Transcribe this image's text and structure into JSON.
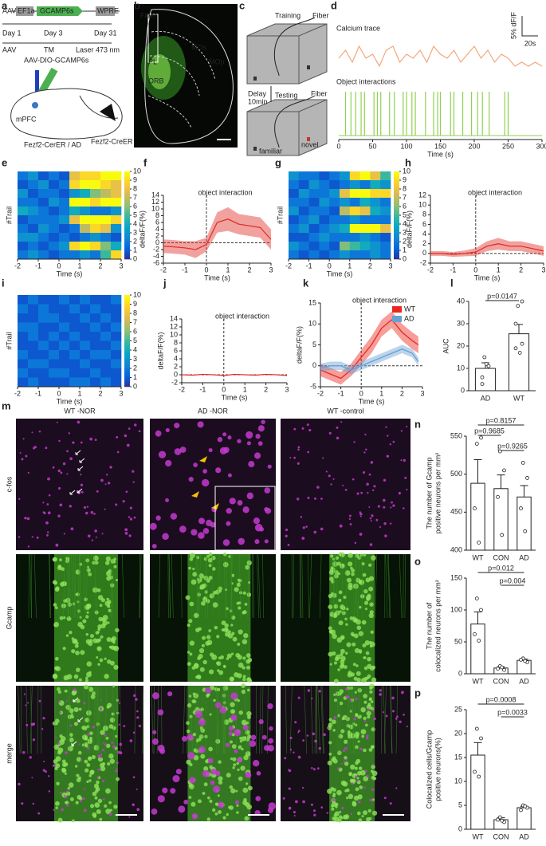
{
  "panels": {
    "a": {
      "label": "a",
      "construct": [
        "AAV",
        "EF1a",
        "GCAMP6s",
        "WPRE"
      ],
      "timeline": [
        "Day 1",
        "Day 3",
        "Day 31"
      ],
      "events": [
        "AAV",
        "TM",
        "Laser 473 nm"
      ],
      "virus": "AAV-DIO-GCAMP6s",
      "region": "mPFC",
      "mouse": "Fezf2-CerER / AD",
      "mouse_sup": "Fezf2-CreER"
    },
    "b": {
      "label": "b",
      "regions": [
        "Fiber",
        "MOs",
        "PL",
        "MOp",
        "ORB"
      ]
    },
    "c": {
      "label": "c",
      "texts": [
        "Training",
        "Fiber",
        "Delay",
        "10min",
        "Testing",
        "Fiber",
        "novel",
        "familiar"
      ]
    },
    "m": {
      "label": "m",
      "columns": [
        "WT -NOR",
        "AD -NOR",
        "WT -control"
      ],
      "rows": [
        "c-fos",
        "Gcamp",
        "merge"
      ]
    }
  },
  "chart_data": [
    {
      "label": "d",
      "type": "events",
      "trace_title": "Calcium trace",
      "events_title": "Object interactions",
      "scale_y": "5% dF/F",
      "scale_x": "20s",
      "trace_color": "#f4a77a",
      "events_color": "#8fd14f",
      "trace_x": [
        0,
        10,
        20,
        30,
        40,
        50,
        60,
        70,
        80,
        90,
        100,
        110,
        120,
        130,
        140,
        150,
        160,
        170,
        180,
        190,
        200,
        210,
        220,
        230,
        240,
        250,
        260,
        270,
        280,
        290,
        300
      ],
      "trace": [
        3,
        5,
        2,
        6,
        3,
        4,
        1,
        5,
        6,
        2,
        4,
        3,
        5,
        2,
        6,
        4,
        3,
        5,
        2,
        4,
        6,
        3,
        5,
        2,
        4,
        3,
        1,
        2,
        1,
        2,
        1
      ],
      "events": [
        10,
        18,
        25,
        33,
        38,
        52,
        57,
        62,
        75,
        82,
        95,
        100,
        108,
        113,
        128,
        140,
        146,
        150,
        165,
        170,
        183,
        196,
        205,
        212,
        222,
        245,
        250
      ],
      "xlim": [
        0,
        300
      ],
      "xticks": [
        0,
        50,
        100,
        150,
        200,
        250,
        300
      ],
      "xlabel": "Time (s)"
    },
    {
      "label": "e",
      "type": "heatmap",
      "ylabel": "#Trail",
      "xlabel": "Time (s)",
      "xlim": [
        -2,
        3
      ],
      "xticks": [
        -2,
        -1,
        0,
        1,
        2,
        3
      ],
      "clim": [
        0,
        10
      ],
      "cticks": [
        0,
        1,
        2,
        3,
        4,
        5,
        6,
        7,
        8,
        9,
        10
      ],
      "matrix": [
        [
          2,
          3,
          1,
          2,
          1,
          8,
          9,
          9,
          10,
          10
        ],
        [
          1,
          2,
          3,
          1,
          2,
          9,
          10,
          10,
          9,
          8
        ],
        [
          3,
          1,
          2,
          2,
          1,
          3,
          4,
          6,
          7,
          8
        ],
        [
          2,
          2,
          1,
          3,
          2,
          10,
          10,
          9,
          10,
          10
        ],
        [
          4,
          3,
          2,
          1,
          2,
          4,
          3,
          2,
          2,
          3
        ],
        [
          1,
          2,
          2,
          2,
          3,
          8,
          10,
          10,
          10,
          9
        ],
        [
          2,
          1,
          3,
          2,
          1,
          2,
          7,
          9,
          8,
          3
        ],
        [
          3,
          3,
          2,
          1,
          2,
          1,
          2,
          3,
          2,
          1
        ],
        [
          1,
          2,
          1,
          2,
          3,
          9,
          10,
          9,
          6,
          4
        ],
        [
          2,
          3,
          2,
          1,
          2,
          2,
          3,
          2,
          5,
          9
        ]
      ]
    },
    {
      "label": "f",
      "type": "band",
      "title": "object interaction",
      "ylabel": "deltaF/F(%)",
      "xlabel": "Time (s)",
      "xlim": [
        -2,
        3
      ],
      "xticks": [
        -2,
        -1,
        0,
        1,
        2,
        3
      ],
      "ylim": [
        -6,
        14
      ],
      "yticks": [
        -6,
        -4,
        -2,
        0,
        2,
        4,
        6,
        8,
        10,
        12,
        14
      ],
      "x": [
        -2,
        -1.5,
        -1,
        -0.5,
        0,
        0.5,
        1,
        1.5,
        2,
        2.5,
        3
      ],
      "series": [
        {
          "color": "#e0312b",
          "values": [
            -1,
            -1.2,
            -1.5,
            -2,
            -0.5,
            6,
            7,
            5.5,
            5,
            4.5,
            1
          ],
          "sem": [
            2,
            2,
            2,
            2.5,
            2,
            3,
            3.5,
            3,
            3,
            3,
            3
          ]
        }
      ]
    },
    {
      "label": "g",
      "type": "heatmap",
      "ylabel": "#Trail",
      "xlabel": "Time (s)",
      "xlim": [
        -2,
        3
      ],
      "xticks": [
        -2,
        -1,
        0,
        1,
        2,
        3
      ],
      "clim": [
        0,
        10
      ],
      "cticks": [
        0,
        1,
        2,
        3,
        4,
        5,
        6,
        7,
        8,
        9,
        10
      ],
      "matrix": [
        [
          3,
          2,
          2,
          1,
          2,
          3,
          9,
          10,
          8,
          5
        ],
        [
          2,
          1,
          3,
          2,
          1,
          2,
          3,
          2,
          4,
          3
        ],
        [
          1,
          3,
          2,
          2,
          3,
          8,
          10,
          10,
          9,
          9
        ],
        [
          2,
          2,
          1,
          3,
          2,
          3,
          2,
          4,
          3,
          2
        ],
        [
          3,
          1,
          2,
          2,
          1,
          7,
          9,
          8,
          4,
          3
        ],
        [
          1,
          2,
          3,
          1,
          2,
          2,
          3,
          2,
          2,
          2
        ],
        [
          2,
          3,
          1,
          2,
          3,
          4,
          10,
          10,
          10,
          8
        ],
        [
          1,
          1,
          2,
          3,
          2,
          2,
          2,
          3,
          2,
          1
        ],
        [
          3,
          2,
          1,
          2,
          1,
          6,
          5,
          4,
          3,
          2
        ],
        [
          2,
          1,
          2,
          1,
          2,
          3,
          2,
          2,
          3,
          2
        ]
      ]
    },
    {
      "label": "h",
      "type": "band",
      "title": "object interaction",
      "ylabel": "deltaF/F(%)",
      "xlabel": "Time (s)",
      "xlim": [
        -2,
        3
      ],
      "xticks": [
        -2,
        -1,
        0,
        1,
        2,
        3
      ],
      "ylim": [
        -2,
        12
      ],
      "yticks": [
        -2,
        0,
        2,
        4,
        6,
        8,
        10,
        12
      ],
      "x": [
        -2,
        -1.5,
        -1,
        -0.5,
        0,
        0.5,
        1,
        1.5,
        2,
        2.5,
        3
      ],
      "series": [
        {
          "color": "#e0312b",
          "values": [
            0,
            0,
            -0.2,
            0,
            0.3,
            1.5,
            2,
            1.5,
            1.5,
            1,
            0.5
          ],
          "sem": [
            0.5,
            0.5,
            0.5,
            0.6,
            0.8,
            1,
            1.2,
            1,
            1,
            1,
            1
          ]
        }
      ]
    },
    {
      "label": "i",
      "type": "heatmap",
      "ylabel": "#Trail",
      "xlabel": "Time (s)",
      "xlim": [
        -2,
        3
      ],
      "xticks": [
        -2,
        -1,
        0,
        1,
        2,
        3
      ],
      "clim": [
        0,
        10
      ],
      "cticks": [
        0,
        1,
        2,
        3,
        4,
        5,
        6,
        7,
        8,
        9,
        10
      ],
      "matrix": [
        [
          1,
          2,
          1,
          1,
          2,
          1,
          2,
          1,
          1,
          2
        ],
        [
          2,
          1,
          2,
          1,
          1,
          2,
          1,
          2,
          1,
          1
        ],
        [
          1,
          1,
          2,
          2,
          1,
          1,
          2,
          1,
          2,
          1
        ],
        [
          2,
          2,
          1,
          1,
          2,
          1,
          1,
          2,
          1,
          2
        ],
        [
          1,
          2,
          1,
          2,
          1,
          2,
          1,
          1,
          2,
          1
        ],
        [
          1,
          1,
          2,
          1,
          2,
          1,
          2,
          1,
          1,
          2
        ],
        [
          2,
          1,
          1,
          2,
          1,
          2,
          1,
          2,
          2,
          1
        ],
        [
          1,
          2,
          2,
          1,
          1,
          1,
          2,
          1,
          1,
          2
        ],
        [
          2,
          1,
          1,
          2,
          2,
          1,
          1,
          2,
          1,
          1
        ],
        [
          1,
          2,
          1,
          1,
          1,
          2,
          2,
          1,
          2,
          1
        ]
      ]
    },
    {
      "label": "j",
      "type": "band",
      "title": "object interaction",
      "ylabel": "deltaF/F(%)",
      "xlabel": "Time (s)",
      "xlim": [
        -2,
        3
      ],
      "xticks": [
        -2,
        -1,
        0,
        1,
        2,
        3
      ],
      "ylim": [
        -2,
        14
      ],
      "yticks": [
        -2,
        0,
        2,
        4,
        6,
        8,
        10,
        12,
        14
      ],
      "x": [
        -2,
        -1.5,
        -1,
        -0.5,
        0,
        0.5,
        1,
        1.5,
        2,
        2.5,
        3
      ],
      "series": [
        {
          "color": "#e0312b",
          "values": [
            0,
            -0.1,
            0.1,
            0,
            -0.2,
            0.1,
            0,
            -0.1,
            0.1,
            0,
            -0.2
          ]
        }
      ]
    },
    {
      "label": "k",
      "type": "band",
      "title": "object interaction",
      "ylabel": "deltaF/F(%)",
      "xlabel": "Time (s)",
      "xlim": [
        -2,
        3
      ],
      "xticks": [
        -2,
        -1,
        0,
        1,
        2,
        3
      ],
      "ylim": [
        -5,
        15
      ],
      "yticks": [
        -5,
        0,
        5,
        10,
        15
      ],
      "x": [
        -2,
        -1.5,
        -1,
        -0.5,
        0,
        0.5,
        1,
        1.5,
        2,
        2.5,
        2.8
      ],
      "series": [
        {
          "name": "WT",
          "color": "#e8281e",
          "values": [
            -1,
            -2,
            -3,
            -1,
            2,
            5,
            9,
            11,
            8,
            6,
            5
          ],
          "sem": [
            1.5,
            1.5,
            1.5,
            1.5,
            1.8,
            2,
            2,
            2,
            2,
            2,
            2
          ]
        },
        {
          "name": "AD",
          "color": "#6a9fd4",
          "values": [
            -0.5,
            0,
            0,
            -1,
            0,
            1,
            2,
            3,
            4,
            3,
            1
          ],
          "sem": [
            1,
            1,
            1,
            1,
            1,
            1,
            1,
            1,
            1,
            1,
            1
          ]
        }
      ]
    },
    {
      "label": "l",
      "type": "bar",
      "ylabel": [
        "AUC"
      ],
      "categories": [
        "AD",
        "WT"
      ],
      "values": [
        10,
        25.5
      ],
      "errors": [
        2.5,
        4.2
      ],
      "points": [
        [
          15,
          11,
          6,
          12,
          3
        ],
        [
          38,
          40,
          30,
          17,
          19,
          21
        ]
      ],
      "ylim": [
        0,
        40
      ],
      "yticks": [
        0,
        10,
        20,
        30,
        40
      ],
      "comparisons": [
        "p=0.0147"
      ]
    },
    {
      "label": "n",
      "type": "bar",
      "ylabel": [
        "The number of Gcamp",
        "positive neurons per mm²"
      ],
      "categories": [
        "WT",
        "CON",
        "AD"
      ],
      "values": [
        488,
        481,
        470
      ],
      "errors": [
        31,
        18,
        15
      ],
      "points": [
        [
          540,
          548,
          455,
          410
        ],
        [
          530,
          505,
          470,
          420
        ],
        [
          515,
          495,
          455,
          425
        ]
      ],
      "ylim": [
        400,
        550
      ],
      "yticks": [
        400,
        450,
        500,
        550
      ],
      "comparisons": [
        "p=0.8157",
        "p=0.9685",
        "p=0.9265"
      ]
    },
    {
      "label": "o",
      "type": "bar",
      "ylabel": [
        "The number of",
        "colocalized neurons per mm²"
      ],
      "categories": [
        "WT",
        "CON",
        "AD"
      ],
      "values": [
        78,
        9,
        21
      ],
      "errors": [
        19,
        2,
        2
      ],
      "points": [
        [
          118,
          100,
          62,
          52
        ],
        [
          12,
          6,
          8,
          10
        ],
        [
          24,
          18,
          22,
          20
        ]
      ],
      "ylim": [
        0,
        150
      ],
      "yticks": [
        0,
        50,
        100,
        150
      ],
      "comparisons": [
        "p=0.012",
        "p=0.004"
      ]
    },
    {
      "label": "p",
      "type": "bar",
      "ylabel": [
        "Colocalized cells/Gcamp",
        "positive neurons(%)"
      ],
      "categories": [
        "WT",
        "CON",
        "AD"
      ],
      "values": [
        15.5,
        2,
        4.5
      ],
      "errors": [
        2.6,
        0.4,
        0.3
      ],
      "points": [
        [
          21,
          19,
          12,
          11
        ],
        [
          2.5,
          1.5,
          2,
          1.8
        ],
        [
          5,
          4.5,
          4,
          4.8
        ]
      ],
      "ylim": [
        0,
        25
      ],
      "yticks": [
        0,
        5,
        10,
        15,
        20,
        25
      ],
      "comparisons": [
        "p=0.0008",
        "p=0.0033"
      ]
    }
  ]
}
